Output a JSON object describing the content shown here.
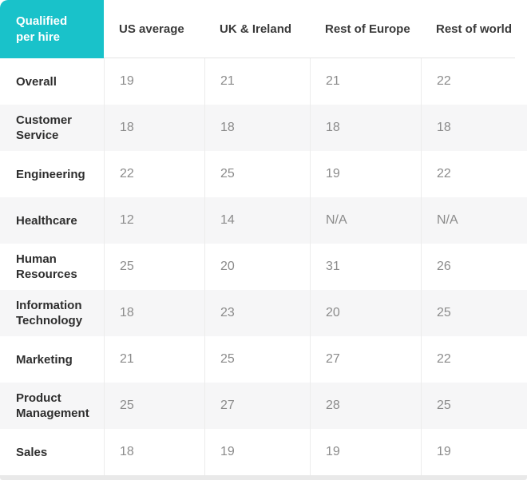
{
  "chart_data": {
    "type": "table",
    "title": "Qualified per hire",
    "categories": [
      "US average",
      "UK & Ireland",
      "Rest of Europe",
      "Rest of world"
    ],
    "rows": [
      {
        "label": "Overall",
        "values": [
          19,
          21,
          21,
          22
        ]
      },
      {
        "label": "Customer Service",
        "values": [
          18,
          18,
          18,
          18
        ]
      },
      {
        "label": "Engineering",
        "values": [
          22,
          25,
          19,
          22
        ]
      },
      {
        "label": "Healthcare",
        "values": [
          12,
          14,
          "N/A",
          "N/A"
        ]
      },
      {
        "label": "Human Resources",
        "values": [
          25,
          20,
          31,
          26
        ]
      },
      {
        "label": "Information Technology",
        "values": [
          18,
          23,
          20,
          25
        ]
      },
      {
        "label": "Marketing",
        "values": [
          21,
          25,
          27,
          22
        ]
      },
      {
        "label": "Product Management",
        "values": [
          25,
          27,
          28,
          25
        ]
      },
      {
        "label": "Sales",
        "values": [
          18,
          19,
          19,
          19
        ]
      }
    ],
    "layout": {
      "header_position": "top",
      "alt_rows_shaded": true,
      "grid": "column-separators-only"
    }
  },
  "colors": {
    "accent_teal": "#19c2ca",
    "corner_text": "#ffffff",
    "header_text": "#3a3a3a",
    "row_label_text": "#2e2e2e",
    "value_text": "#8b8b8b",
    "alt_row_bg": "#f6f6f7",
    "column_border": "#ececec",
    "header_border": "#e4e4e4",
    "bottom_bar": "#e9e9e9"
  }
}
